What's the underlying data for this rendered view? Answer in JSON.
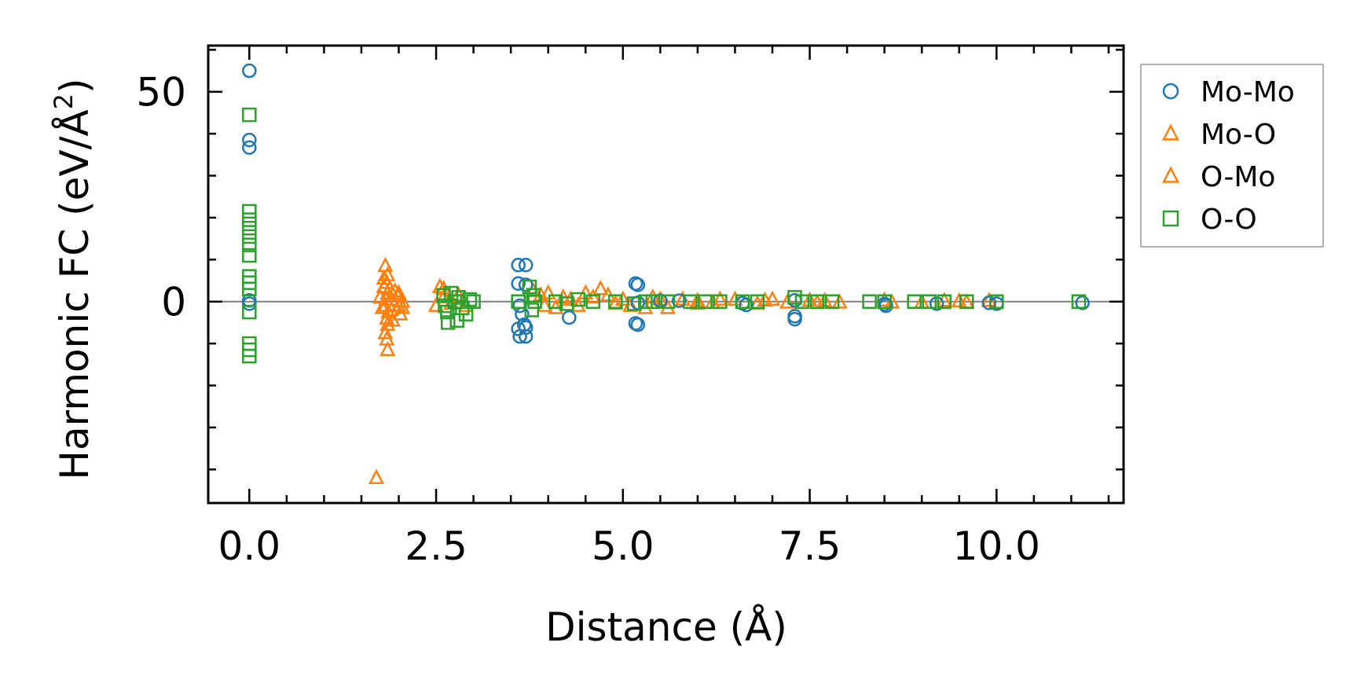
{
  "chart_data": {
    "type": "scatter",
    "xlabel": "Distance (Å)",
    "ylabel": "Harmonic FC (eV/Å",
    "ylabel_sup": "2",
    "ylabel_close": ")",
    "xlim": [
      -0.55,
      11.7
    ],
    "ylim": [
      -48,
      61
    ],
    "xticks": [
      0.0,
      2.5,
      5.0,
      7.5,
      10.0
    ],
    "xtick_labels": [
      "0.0",
      "2.5",
      "5.0",
      "7.5",
      "10.0"
    ],
    "yticks": [
      0,
      50
    ],
    "ytick_labels": [
      "0",
      "50"
    ],
    "legend_position": "outside-right-top",
    "zero_line": true,
    "series": [
      {
        "name": "Mo-Mo",
        "marker": "circle",
        "color": "#1f77b4",
        "points": [
          [
            0.0,
            55.0
          ],
          [
            0.0,
            38.5
          ],
          [
            0.0,
            36.7
          ],
          [
            0.0,
            0.3
          ],
          [
            0.0,
            -0.5
          ],
          [
            3.6,
            8.7
          ],
          [
            3.7,
            8.7
          ],
          [
            3.6,
            4.3
          ],
          [
            3.7,
            4.0
          ],
          [
            3.62,
            -1.0
          ],
          [
            3.65,
            -3.0
          ],
          [
            3.68,
            -5.5
          ],
          [
            3.6,
            -6.5
          ],
          [
            3.7,
            -6.2
          ],
          [
            3.62,
            -8.3
          ],
          [
            3.7,
            -8.3
          ],
          [
            4.28,
            -3.8
          ],
          [
            5.17,
            4.3
          ],
          [
            5.2,
            4.0
          ],
          [
            5.17,
            -5.2
          ],
          [
            5.2,
            -5.5
          ],
          [
            5.2,
            -0.3
          ],
          [
            5.5,
            0.2
          ],
          [
            5.75,
            0.2
          ],
          [
            6.6,
            -0.4
          ],
          [
            6.65,
            -0.8
          ],
          [
            7.3,
            -3.5
          ],
          [
            7.3,
            -4.2
          ],
          [
            7.3,
            0.3
          ],
          [
            8.5,
            -0.6
          ],
          [
            8.52,
            -1.0
          ],
          [
            9.2,
            -0.5
          ],
          [
            9.9,
            -0.3
          ],
          [
            10.0,
            -0.5
          ],
          [
            11.15,
            -0.3
          ]
        ]
      },
      {
        "name": "Mo-O",
        "marker": "triangle",
        "color": "#ff7f0e",
        "points": [
          [
            1.7,
            -42.0
          ],
          [
            1.82,
            8.5
          ],
          [
            1.85,
            6.3
          ],
          [
            1.84,
            4.5
          ],
          [
            1.8,
            3.5
          ],
          [
            1.85,
            2.0
          ],
          [
            1.83,
            0.5
          ],
          [
            1.82,
            -1.0
          ],
          [
            1.86,
            -2.5
          ],
          [
            1.84,
            -4.0
          ],
          [
            1.85,
            -5.5
          ],
          [
            1.82,
            -7.5
          ],
          [
            1.84,
            -9.0
          ],
          [
            1.85,
            -11.5
          ],
          [
            1.75,
            1.0
          ],
          [
            1.78,
            -1.5
          ],
          [
            1.9,
            0.5
          ],
          [
            1.95,
            2.5
          ],
          [
            2.0,
            -1.0
          ],
          [
            2.0,
            2.0
          ],
          [
            2.02,
            -3.0
          ],
          [
            2.05,
            0.0
          ],
          [
            2.5,
            -1.0
          ],
          [
            2.55,
            3.5
          ],
          [
            2.6,
            1.0
          ],
          [
            2.7,
            -0.5
          ],
          [
            2.8,
            1.5
          ],
          [
            3.9,
            1.5
          ],
          [
            4.0,
            2.0
          ],
          [
            4.1,
            -1.5
          ],
          [
            4.3,
            0.5
          ],
          [
            4.5,
            2.0
          ],
          [
            4.6,
            1.0
          ],
          [
            4.7,
            3.0
          ],
          [
            4.9,
            -0.5
          ],
          [
            5.0,
            0.5
          ],
          [
            5.3,
            -1.5
          ],
          [
            5.5,
            0.5
          ],
          [
            5.6,
            -1.5
          ],
          [
            5.8,
            0.5
          ],
          [
            6.0,
            0.2
          ],
          [
            6.2,
            -0.3
          ],
          [
            6.5,
            0.5
          ],
          [
            6.8,
            -0.5
          ],
          [
            7.0,
            0.5
          ],
          [
            7.2,
            -0.2
          ],
          [
            7.5,
            0.3
          ],
          [
            7.7,
            0.2
          ],
          [
            7.9,
            -0.2
          ],
          [
            8.5,
            0.3
          ],
          [
            9.0,
            -0.2
          ],
          [
            9.3,
            0.2
          ],
          [
            9.5,
            0.1
          ],
          [
            9.9,
            0.2
          ]
        ]
      },
      {
        "name": "O-Mo",
        "marker": "triangle",
        "color": "#ff7f0e",
        "points": [
          [
            1.8,
            5.5
          ],
          [
            1.88,
            3.0
          ],
          [
            1.9,
            -2.0
          ],
          [
            1.92,
            -4.5
          ],
          [
            2.0,
            1.5
          ],
          [
            2.05,
            -1.5
          ],
          [
            2.6,
            3.0
          ],
          [
            2.9,
            -1.0
          ],
          [
            3.8,
            2.5
          ],
          [
            3.95,
            -1.0
          ],
          [
            4.2,
            1.0
          ],
          [
            4.4,
            -1.0
          ],
          [
            4.8,
            1.5
          ],
          [
            5.1,
            -1.0
          ],
          [
            5.4,
            1.0
          ],
          [
            6.0,
            -0.5
          ],
          [
            6.3,
            0.5
          ],
          [
            6.9,
            0.3
          ],
          [
            7.6,
            -0.3
          ],
          [
            8.6,
            -0.2
          ],
          [
            9.6,
            -0.2
          ]
        ]
      },
      {
        "name": "O-O",
        "marker": "square",
        "color": "#2ca02c",
        "points": [
          [
            0.0,
            44.5
          ],
          [
            0.0,
            21.5
          ],
          [
            0.0,
            19.5
          ],
          [
            0.0,
            17.5
          ],
          [
            0.0,
            15.5
          ],
          [
            0.0,
            13.5
          ],
          [
            0.0,
            11.0
          ],
          [
            0.0,
            6.0
          ],
          [
            0.0,
            4.5
          ],
          [
            0.0,
            3.0
          ],
          [
            0.0,
            -2.5
          ],
          [
            0.0,
            -10.0
          ],
          [
            0.0,
            -11.5
          ],
          [
            0.0,
            -13.0
          ],
          [
            2.6,
            1.5
          ],
          [
            2.62,
            -1.0
          ],
          [
            2.65,
            -2.5
          ],
          [
            2.66,
            -5.0
          ],
          [
            2.7,
            2.0
          ],
          [
            2.75,
            0.0
          ],
          [
            2.78,
            -4.5
          ],
          [
            2.8,
            1.0
          ],
          [
            2.85,
            -1.5
          ],
          [
            2.9,
            -3.0
          ],
          [
            2.95,
            0.5
          ],
          [
            3.0,
            0.0
          ],
          [
            3.6,
            0.0
          ],
          [
            3.75,
            3.5
          ],
          [
            3.78,
            -2.0
          ],
          [
            3.8,
            1.5
          ],
          [
            3.82,
            0.0
          ],
          [
            4.1,
            0.0
          ],
          [
            4.25,
            -0.5
          ],
          [
            4.4,
            0.5
          ],
          [
            4.6,
            0.0
          ],
          [
            4.9,
            0.0
          ],
          [
            5.15,
            -0.5
          ],
          [
            5.3,
            0.0
          ],
          [
            5.4,
            0.0
          ],
          [
            5.6,
            0.0
          ],
          [
            5.9,
            0.0
          ],
          [
            6.1,
            0.0
          ],
          [
            6.3,
            0.0
          ],
          [
            6.6,
            0.0
          ],
          [
            6.8,
            0.0
          ],
          [
            7.3,
            1.0
          ],
          [
            7.4,
            0.0
          ],
          [
            7.6,
            0.0
          ],
          [
            7.8,
            0.0
          ],
          [
            8.3,
            0.0
          ],
          [
            8.5,
            0.0
          ],
          [
            8.9,
            0.0
          ],
          [
            9.1,
            0.0
          ],
          [
            9.3,
            0.0
          ],
          [
            9.6,
            0.0
          ],
          [
            10.0,
            0.0
          ],
          [
            11.1,
            0.0
          ]
        ]
      }
    ]
  }
}
